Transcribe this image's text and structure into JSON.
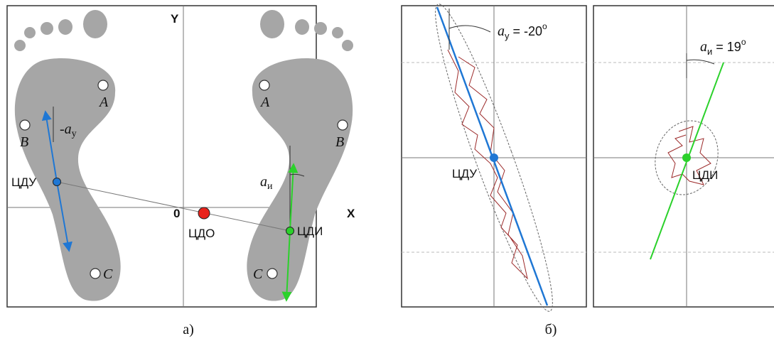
{
  "panel_a": {
    "caption": "а)",
    "axis_y": "Y",
    "axis_x": "X",
    "origin": "0",
    "left_foot": {
      "points": [
        "A",
        "B",
        "C"
      ],
      "center": "ЦДУ",
      "angle": {
        "prefix": "-",
        "symbol": "a",
        "subscript": "у"
      }
    },
    "right_foot": {
      "points": [
        "A",
        "B",
        "C"
      ],
      "center": "ЦДИ",
      "angle": {
        "symbol": "a",
        "subscript": "и"
      }
    },
    "common_center": "ЦДО"
  },
  "panel_b": {
    "caption": "б)",
    "left": {
      "angle": {
        "symbol": "a",
        "subscript": "у",
        "value": " = -20",
        "degree": "o"
      },
      "center": "ЦДУ"
    },
    "right": {
      "angle": {
        "symbol": "a",
        "subscript": "и",
        "value": " = 19",
        "degree": "o"
      },
      "center": "ЦДИ"
    }
  }
}
